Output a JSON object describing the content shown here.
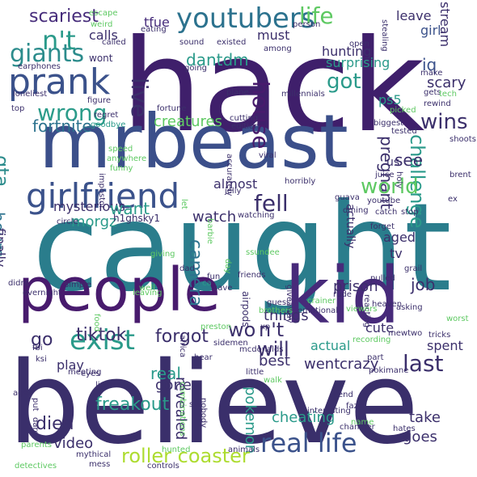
{
  "word_cloud": {
    "background": "#ffffff",
    "palette": [
      "#440154",
      "#472d7b",
      "#3b528b",
      "#2c728e",
      "#21918c",
      "#28ae80",
      "#5ec962",
      "#addc30",
      "#fde725"
    ],
    "words": [
      {
        "text": "hack",
        "color": "#3f1f6b",
        "rotated": false
      },
      {
        "text": "caught",
        "color": "#2a7d8c",
        "rotated": false
      },
      {
        "text": "believe",
        "color": "#3a2f6b",
        "rotated": false
      },
      {
        "text": "mrbeast",
        "color": "#3b4f8a",
        "rotated": false
      },
      {
        "text": "people",
        "color": "#481b6d",
        "rotated": false
      },
      {
        "text": "kid",
        "color": "#472a7a",
        "rotated": false
      },
      {
        "text": "prank",
        "color": "#3b528b",
        "rotated": false
      },
      {
        "text": "youtubers",
        "color": "#2c728e",
        "rotated": false
      },
      {
        "text": "girlfriend",
        "color": "#3b528b",
        "rotated": false
      },
      {
        "text": "giants",
        "color": "#2c8c8c",
        "rotated": false
      },
      {
        "text": "n't",
        "color": "#2a9a8a",
        "rotated": false
      },
      {
        "text": "scariest",
        "color": "#472d7b",
        "rotated": false
      },
      {
        "text": "life",
        "color": "#5ec962",
        "rotated": false
      },
      {
        "text": "live",
        "color": "#3b2f6b",
        "rotated": true
      },
      {
        "text": "house",
        "color": "#481b6d",
        "rotated": true
      },
      {
        "text": "wrong",
        "color": "#2c9c8a",
        "rotated": false
      },
      {
        "text": "fortnite",
        "color": "#2c728e",
        "rotated": false
      },
      {
        "text": "gta",
        "color": "#2c8c8c",
        "rotated": true
      },
      {
        "text": "dantdm",
        "color": "#2a9a8a",
        "rotated": false
      },
      {
        "text": "tfue",
        "color": "#472d7b",
        "rotated": false
      },
      {
        "text": "calls",
        "color": "#3b2f6b",
        "rotated": false
      },
      {
        "text": "must",
        "color": "#3b2f6b",
        "rotated": false
      },
      {
        "text": "got",
        "color": "#2a9a8a",
        "rotated": false
      },
      {
        "text": "iq",
        "color": "#3b528b",
        "rotated": false
      },
      {
        "text": "girl",
        "color": "#3b528b",
        "rotated": false
      },
      {
        "text": "scary",
        "color": "#3b2f6b",
        "rotated": false
      },
      {
        "text": "ps5",
        "color": "#2a9a8a",
        "rotated": false
      },
      {
        "text": "wins",
        "color": "#3b2f6b",
        "rotated": false
      },
      {
        "text": "hunting",
        "color": "#3b2f6b",
        "rotated": false
      },
      {
        "text": "leave",
        "color": "#3b2f6b",
        "rotated": false
      },
      {
        "text": "stream",
        "color": "#3b2f6b",
        "rotated": true
      },
      {
        "text": "creatures",
        "color": "#5ec962",
        "rotated": false
      },
      {
        "text": "surprising",
        "color": "#2a9a8a",
        "rotated": false
      },
      {
        "text": "challenge",
        "color": "#2a9a8a",
        "rotated": true
      },
      {
        "text": "pregnant",
        "color": "#3b2f6b",
        "rotated": true
      },
      {
        "text": "see",
        "color": "#3b2f6b",
        "rotated": false
      },
      {
        "text": "world",
        "color": "#5ec962",
        "rotated": false
      },
      {
        "text": "fell",
        "color": "#3b2f6b",
        "rotated": false
      },
      {
        "text": "almost",
        "color": "#3b2f6b",
        "rotated": false
      },
      {
        "text": "hours",
        "color": "#2c728e",
        "rotated": true
      },
      {
        "text": "finally",
        "color": "#3b2f6b",
        "rotated": true
      },
      {
        "text": "mysterious",
        "color": "#3b2f6b",
        "rotated": false
      },
      {
        "text": "want",
        "color": "#2a9a8a",
        "rotated": false
      },
      {
        "text": "watch",
        "color": "#3b2f6b",
        "rotated": false
      },
      {
        "text": "morgz",
        "color": "#2a9a8a",
        "rotated": false
      },
      {
        "text": "h1ghsky1",
        "color": "#3b2f6b",
        "rotated": false
      },
      {
        "text": "actually",
        "color": "#3b2f6b",
        "rotated": true
      },
      {
        "text": "aged",
        "color": "#3b2f6b",
        "rotated": false
      },
      {
        "text": "tv",
        "color": "#3b2f6b",
        "rotated": false
      },
      {
        "text": "job",
        "color": "#3b2f6b",
        "rotated": false
      },
      {
        "text": "prison",
        "color": "#3b2f6b",
        "rotated": false
      },
      {
        "text": "things",
        "color": "#3b2f6b",
        "rotated": false
      },
      {
        "text": "camera",
        "color": "#2c728e",
        "rotated": true
      },
      {
        "text": "wo",
        "color": "#3b2f6b",
        "rotated": false
      },
      {
        "text": "n't",
        "color": "#3b2f6b",
        "rotated": false
      },
      {
        "text": "will",
        "color": "#3b2f6b",
        "rotated": false
      },
      {
        "text": "exist",
        "color": "#2a9a8a",
        "rotated": false
      },
      {
        "text": "go",
        "color": "#3b2f6b",
        "rotated": false
      },
      {
        "text": "tiktok",
        "color": "#3b2f6b",
        "rotated": false
      },
      {
        "text": "forgot",
        "color": "#3b2f6b",
        "rotated": false
      },
      {
        "text": "last",
        "color": "#3b2f6b",
        "rotated": false
      },
      {
        "text": "best",
        "color": "#3b2f6b",
        "rotated": false
      },
      {
        "text": "went",
        "color": "#3b2f6b",
        "rotated": false
      },
      {
        "text": "crazy",
        "color": "#3b2f6b",
        "rotated": false
      },
      {
        "text": "real",
        "color": "#2a9a8a",
        "rotated": false
      },
      {
        "text": "revealed",
        "color": "#3b2f6b",
        "rotated": true
      },
      {
        "text": "gone",
        "color": "#3b2f6b",
        "rotated": false
      },
      {
        "text": "freakout",
        "color": "#2a9a8a",
        "rotated": false
      },
      {
        "text": "pokemon",
        "color": "#2a9a8a",
        "rotated": true
      },
      {
        "text": "died",
        "color": "#3b2f6b",
        "rotated": false
      },
      {
        "text": "roller coaster",
        "color": "#addc30",
        "rotated": false
      },
      {
        "text": "video",
        "color": "#3b2f6b",
        "rotated": false
      },
      {
        "text": "real life",
        "color": "#3b528b",
        "rotated": false
      },
      {
        "text": "cheating",
        "color": "#2a9a8a",
        "rotated": false
      },
      {
        "text": "take",
        "color": "#3b2f6b",
        "rotated": false
      },
      {
        "text": "goes",
        "color": "#3b2f6b",
        "rotated": false
      },
      {
        "text": "cute",
        "color": "#3b2f6b",
        "rotated": false
      },
      {
        "text": "spent",
        "color": "#3b2f6b",
        "rotated": false
      },
      {
        "text": "play",
        "color": "#3b2f6b",
        "rotated": false
      },
      {
        "text": "actual",
        "color": "#2a9a8a",
        "rotated": false
      },
      {
        "text": "us",
        "color": "#3b2f6b",
        "rotated": false
      },
      {
        "text": "escape",
        "color": "#5ec962",
        "rotated": false
      },
      {
        "text": "weird",
        "color": "#5ec962",
        "rotated": false
      },
      {
        "text": "eating",
        "color": "#3b2f6b",
        "rotated": false
      },
      {
        "text": "called",
        "color": "#3b2f6b",
        "rotated": false
      },
      {
        "text": "wont",
        "color": "#3b2f6b",
        "rotated": false
      },
      {
        "text": "earphones",
        "color": "#3b2f6b",
        "rotated": false
      },
      {
        "text": "loneliest",
        "color": "#3b2f6b",
        "rotated": false
      },
      {
        "text": "top",
        "color": "#3b2f6b",
        "rotated": false
      },
      {
        "text": "figure",
        "color": "#3b2f6b",
        "rotated": false
      },
      {
        "text": "regret",
        "color": "#3b2f6b",
        "rotated": false
      },
      {
        "text": "goodbye",
        "color": "#2a9a8a",
        "rotated": false
      },
      {
        "text": "speed",
        "color": "#5ec962",
        "rotated": false
      },
      {
        "text": "anywhere",
        "color": "#5ec962",
        "rotated": false
      },
      {
        "text": "funny",
        "color": "#5ec962",
        "rotated": false
      },
      {
        "text": "sound",
        "color": "#3b2f6b",
        "rotated": false
      },
      {
        "text": "existed",
        "color": "#3b2f6b",
        "rotated": false
      },
      {
        "text": "going",
        "color": "#3b2f6b",
        "rotated": false
      },
      {
        "text": "among",
        "color": "#3b2f6b",
        "rotated": false
      },
      {
        "text": "person",
        "color": "#3b2f6b",
        "rotated": false
      },
      {
        "text": "open",
        "color": "#3b2f6b",
        "rotated": false
      },
      {
        "text": "millennials",
        "color": "#3b2f6b",
        "rotated": false
      },
      {
        "text": "plane",
        "color": "#3b2f6b",
        "rotated": false
      },
      {
        "text": "fortune",
        "color": "#3b2f6b",
        "rotated": false
      },
      {
        "text": "cutting",
        "color": "#3b2f6b",
        "rotated": false
      },
      {
        "text": "edition",
        "color": "#3b2f6b",
        "rotated": false
      },
      {
        "text": "accurately",
        "color": "#3b2f6b",
        "rotated": true
      },
      {
        "text": "viral",
        "color": "#3b2f6b",
        "rotated": false
      },
      {
        "text": "horribly",
        "color": "#3b2f6b",
        "rotated": false
      },
      {
        "text": "stealing",
        "color": "#3b2f6b",
        "rotated": true
      },
      {
        "text": "make",
        "color": "#3b2f6b",
        "rotated": false
      },
      {
        "text": "gets",
        "color": "#3b2f6b",
        "rotated": false
      },
      {
        "text": "rewind",
        "color": "#3b2f6b",
        "rotated": false
      },
      {
        "text": "tech",
        "color": "#5ec962",
        "rotated": false
      },
      {
        "text": "picked",
        "color": "#5ec962",
        "rotated": false
      },
      {
        "text": "biggest",
        "color": "#3b2f6b",
        "rotated": false
      },
      {
        "text": "tested",
        "color": "#3b2f6b",
        "rotated": false
      },
      {
        "text": "shoots",
        "color": "#3b2f6b",
        "rotated": false
      },
      {
        "text": "juice",
        "color": "#3b2f6b",
        "rotated": false
      },
      {
        "text": "holy",
        "color": "#3b2f6b",
        "rotated": true
      },
      {
        "text": "brent",
        "color": "#3b2f6b",
        "rotated": false
      },
      {
        "text": "ex",
        "color": "#3b2f6b",
        "rotated": false
      },
      {
        "text": "impostor",
        "color": "#3b2f6b",
        "rotated": true
      },
      {
        "text": "let",
        "color": "#5ec962",
        "rotated": true
      },
      {
        "text": "jelly",
        "color": "#3b2f6b",
        "rotated": false
      },
      {
        "text": "guava",
        "color": "#3b2f6b",
        "rotated": false
      },
      {
        "text": "youtube",
        "color": "#3b2f6b",
        "rotated": false
      },
      {
        "text": "dming",
        "color": "#3b2f6b",
        "rotated": false
      },
      {
        "text": "catch",
        "color": "#3b2f6b",
        "rotated": false
      },
      {
        "text": "stop",
        "color": "#3b2f6b",
        "rotated": false
      },
      {
        "text": "forget",
        "color": "#3b2f6b",
        "rotated": false
      },
      {
        "text": "circle",
        "color": "#3b2f6b",
        "rotated": false
      },
      {
        "text": "watching",
        "color": "#3b2f6b",
        "rotated": false
      },
      {
        "text": "barbie",
        "color": "#5ec962",
        "rotated": true
      },
      {
        "text": "giving",
        "color": "#5ec962",
        "rotated": false
      },
      {
        "text": "dad",
        "color": "#3b2f6b",
        "rotated": false
      },
      {
        "text": "day",
        "color": "#5ec962",
        "rotated": true
      },
      {
        "text": "fun",
        "color": "#3b2f6b",
        "rotated": false
      },
      {
        "text": "friends",
        "color": "#3b2f6b",
        "rotated": false
      },
      {
        "text": "ssundee",
        "color": "#5ec962",
        "rotated": false
      },
      {
        "text": "pulled",
        "color": "#3b2f6b",
        "rotated": false
      },
      {
        "text": "grail",
        "color": "#3b2f6b",
        "rotated": false
      },
      {
        "text": "reacting",
        "color": "#3b2f6b",
        "rotated": true
      },
      {
        "text": "rude",
        "color": "#3b2f6b",
        "rotated": false
      },
      {
        "text": "heaven",
        "color": "#3b2f6b",
        "rotated": false
      },
      {
        "text": "didnt",
        "color": "#3b2f6b",
        "rotated": false
      },
      {
        "text": "overnight",
        "color": "#3b2f6b",
        "rotated": false
      },
      {
        "text": "simple",
        "color": "#3b2f6b",
        "rotated": false
      },
      {
        "text": "well",
        "color": "#5ec962",
        "rotated": false
      },
      {
        "text": "ca",
        "color": "#2a9a8a",
        "rotated": false
      },
      {
        "text": "save",
        "color": "#3b2f6b",
        "rotated": false
      },
      {
        "text": "airpods",
        "color": "#3b2f6b",
        "rotated": true
      },
      {
        "text": "giveaway",
        "color": "#3b2f6b",
        "rotated": true
      },
      {
        "text": "viewers",
        "color": "#5ec962",
        "rotated": false
      },
      {
        "text": "asking",
        "color": "#3b2f6b",
        "rotated": false
      },
      {
        "text": "leaving",
        "color": "#5ec962",
        "rotated": false
      },
      {
        "text": "guess",
        "color": "#3b2f6b",
        "rotated": false
      },
      {
        "text": "crainer",
        "color": "#5ec962",
        "rotated": false
      },
      {
        "text": "emotional",
        "color": "#3b2f6b",
        "rotated": false
      },
      {
        "text": "brothers",
        "color": "#5ec962",
        "rotated": false
      },
      {
        "text": "food",
        "color": "#5ec962",
        "rotated": true
      },
      {
        "text": "africa",
        "color": "#3b2f6b",
        "rotated": true
      },
      {
        "text": "xp",
        "color": "#3b2f6b",
        "rotated": false
      },
      {
        "text": "worst",
        "color": "#5ec962",
        "rotated": false
      },
      {
        "text": "tricks",
        "color": "#3b2f6b",
        "rotated": false
      },
      {
        "text": "mewtwo",
        "color": "#3b2f6b",
        "rotated": false
      },
      {
        "text": "recording",
        "color": "#5ec962",
        "rotated": false
      },
      {
        "text": "ksi",
        "color": "#3b2f6b",
        "rotated": false
      },
      {
        "text": "fbi",
        "color": "#3b2f6b",
        "rotated": false
      },
      {
        "text": "hear",
        "color": "#3b2f6b",
        "rotated": false
      },
      {
        "text": "preston",
        "color": "#5ec962",
        "rotated": false
      },
      {
        "text": "sidemen",
        "color": "#3b2f6b",
        "rotated": false
      },
      {
        "text": "mcdonalds",
        "color": "#3b2f6b",
        "rotated": false
      },
      {
        "text": "little",
        "color": "#3b2f6b",
        "rotated": false
      },
      {
        "text": "part",
        "color": "#3b2f6b",
        "rotated": false
      },
      {
        "text": "pokimane",
        "color": "#3b2f6b",
        "rotated": false
      },
      {
        "text": "meeting",
        "color": "#3b2f6b",
        "rotated": false
      },
      {
        "text": "eyes",
        "color": "#3b2f6b",
        "rotated": false
      },
      {
        "text": "lips",
        "color": "#3b2f6b",
        "rotated": false
      },
      {
        "text": "walk",
        "color": "#5ec962",
        "rotated": false
      },
      {
        "text": "combinations",
        "color": "#5ec962",
        "rotated": true
      },
      {
        "text": "put",
        "color": "#3b2f6b",
        "rotated": true
      },
      {
        "text": "dare",
        "color": "#3b2f6b",
        "rotated": true
      },
      {
        "text": "age",
        "color": "#3b2f6b",
        "rotated": false
      },
      {
        "text": "six",
        "color": "#3b2f6b",
        "rotated": false
      },
      {
        "text": "nobody",
        "color": "#3b2f6b",
        "rotated": true
      },
      {
        "text": "end",
        "color": "#3b2f6b",
        "rotated": false
      },
      {
        "text": "faze",
        "color": "#3b2f6b",
        "rotated": false
      },
      {
        "text": "interesting",
        "color": "#3b2f6b",
        "rotated": false
      },
      {
        "text": "name",
        "color": "#5ec962",
        "rotated": false
      },
      {
        "text": "chandler",
        "color": "#3b2f6b",
        "rotated": false
      },
      {
        "text": "hates",
        "color": "#3b2f6b",
        "rotated": false
      },
      {
        "text": "mythical",
        "color": "#3b2f6b",
        "rotated": false
      },
      {
        "text": "parents",
        "color": "#5ec962",
        "rotated": false
      },
      {
        "text": "controls",
        "color": "#3b2f6b",
        "rotated": false
      },
      {
        "text": "hunted",
        "color": "#5ec962",
        "rotated": false
      },
      {
        "text": "animals",
        "color": "#3b2f6b",
        "rotated": false
      },
      {
        "text": "detectives",
        "color": "#5ec962",
        "rotated": false
      },
      {
        "text": "mess",
        "color": "#3b2f6b",
        "rotated": false
      }
    ]
  }
}
